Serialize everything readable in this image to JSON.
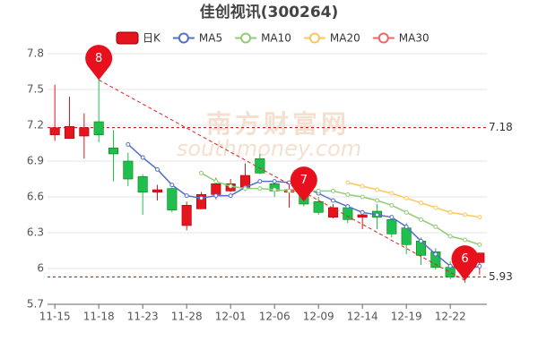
{
  "chart_data": {
    "type": "candlestick",
    "title": "佳创视讯(300264)",
    "categories": [
      "11-15",
      null,
      null,
      "11-18",
      null,
      null,
      "11-23",
      null,
      null,
      "11-28",
      null,
      null,
      "12-01",
      null,
      null,
      "12-06",
      null,
      null,
      "12-09",
      null,
      null,
      "12-14",
      null,
      null,
      "12-19",
      null,
      null,
      "12-22",
      null,
      null
    ],
    "up_color": "#e5141e",
    "down_color": "#1fbf4f",
    "series": [
      {
        "name": "日K",
        "color": "#e5141e",
        "open": [
          7.12,
          7.09,
          7.11,
          7.23,
          7.01,
          6.9,
          6.77,
          6.64,
          6.67,
          6.36,
          6.5,
          6.62,
          6.65,
          6.68,
          6.92,
          6.71,
          6.64,
          6.62,
          6.56,
          6.43,
          6.51,
          6.43,
          6.48,
          6.41,
          6.34,
          6.23,
          6.14,
          6.01,
          6.03,
          6.05
        ],
        "close": [
          7.18,
          7.19,
          7.18,
          7.12,
          6.96,
          6.75,
          6.64,
          6.66,
          6.49,
          6.53,
          6.62,
          6.71,
          6.71,
          6.78,
          6.8,
          6.65,
          6.66,
          6.54,
          6.47,
          6.51,
          6.41,
          6.45,
          6.43,
          6.29,
          6.2,
          6.11,
          6.01,
          5.93,
          5.96,
          6.13
        ],
        "high": [
          7.54,
          7.44,
          7.3,
          7.59,
          7.16,
          6.97,
          6.79,
          6.7,
          6.68,
          6.56,
          6.64,
          6.76,
          6.75,
          6.88,
          6.96,
          6.75,
          6.7,
          6.66,
          6.6,
          6.54,
          6.54,
          6.49,
          6.54,
          6.44,
          6.38,
          6.26,
          6.17,
          6.06,
          6.06,
          6.13
        ],
        "low": [
          7.07,
          7.09,
          6.92,
          7.06,
          6.73,
          6.69,
          6.45,
          6.57,
          6.47,
          6.32,
          6.5,
          6.58,
          6.64,
          6.65,
          6.79,
          6.6,
          6.51,
          6.52,
          6.45,
          6.42,
          6.38,
          6.33,
          6.33,
          6.26,
          6.12,
          6.03,
          5.99,
          5.91,
          5.88,
          5.95
        ]
      },
      {
        "name": "MA5",
        "color": "#5470c6",
        "values": [
          null,
          null,
          null,
          null,
          null,
          7.04,
          6.93,
          6.83,
          6.7,
          6.61,
          6.59,
          6.61,
          6.61,
          6.68,
          6.73,
          6.73,
          6.72,
          6.68,
          6.63,
          6.57,
          6.52,
          6.47,
          6.45,
          6.43,
          6.35,
          6.23,
          6.12,
          6.02,
          5.99,
          6.02
        ]
      },
      {
        "name": "MA10",
        "color": "#91cc75",
        "values": [
          null,
          null,
          null,
          null,
          null,
          null,
          null,
          null,
          null,
          null,
          6.8,
          6.73,
          6.69,
          6.67,
          6.67,
          6.66,
          6.65,
          6.65,
          6.65,
          6.65,
          6.62,
          6.6,
          6.57,
          6.53,
          6.47,
          6.41,
          6.35,
          6.27,
          6.24,
          6.2
        ]
      },
      {
        "name": "MA20",
        "color": "#fac858",
        "values": [
          null,
          null,
          null,
          null,
          null,
          null,
          null,
          null,
          null,
          null,
          null,
          null,
          null,
          null,
          null,
          null,
          null,
          null,
          null,
          null,
          6.72,
          6.69,
          6.66,
          6.63,
          6.59,
          6.55,
          6.51,
          6.47,
          6.45,
          6.43
        ]
      },
      {
        "name": "MA30",
        "color": "#ee6666",
        "values": [
          null,
          null,
          null,
          null,
          null,
          null,
          null,
          null,
          null,
          null,
          null,
          null,
          null,
          null,
          null,
          null,
          null,
          null,
          null,
          null,
          null,
          null,
          null,
          null,
          null,
          null,
          null,
          null,
          null,
          null
        ]
      }
    ],
    "ylim": [
      5.7,
      7.8
    ],
    "yticks": [
      5.7,
      6,
      6.3,
      6.6,
      6.9,
      7.2,
      7.5,
      7.8
    ],
    "grid": true,
    "reference_lines": [
      7.18,
      5.93
    ],
    "pins": [
      {
        "text": "8",
        "point": 3,
        "y": 7.58
      },
      {
        "text": "7",
        "point": 17,
        "y": 6.56
      },
      {
        "text": "6",
        "point": 28,
        "y": 5.9
      }
    ],
    "watermark": [
      "南方财富网",
      "southmoney.com"
    ]
  }
}
